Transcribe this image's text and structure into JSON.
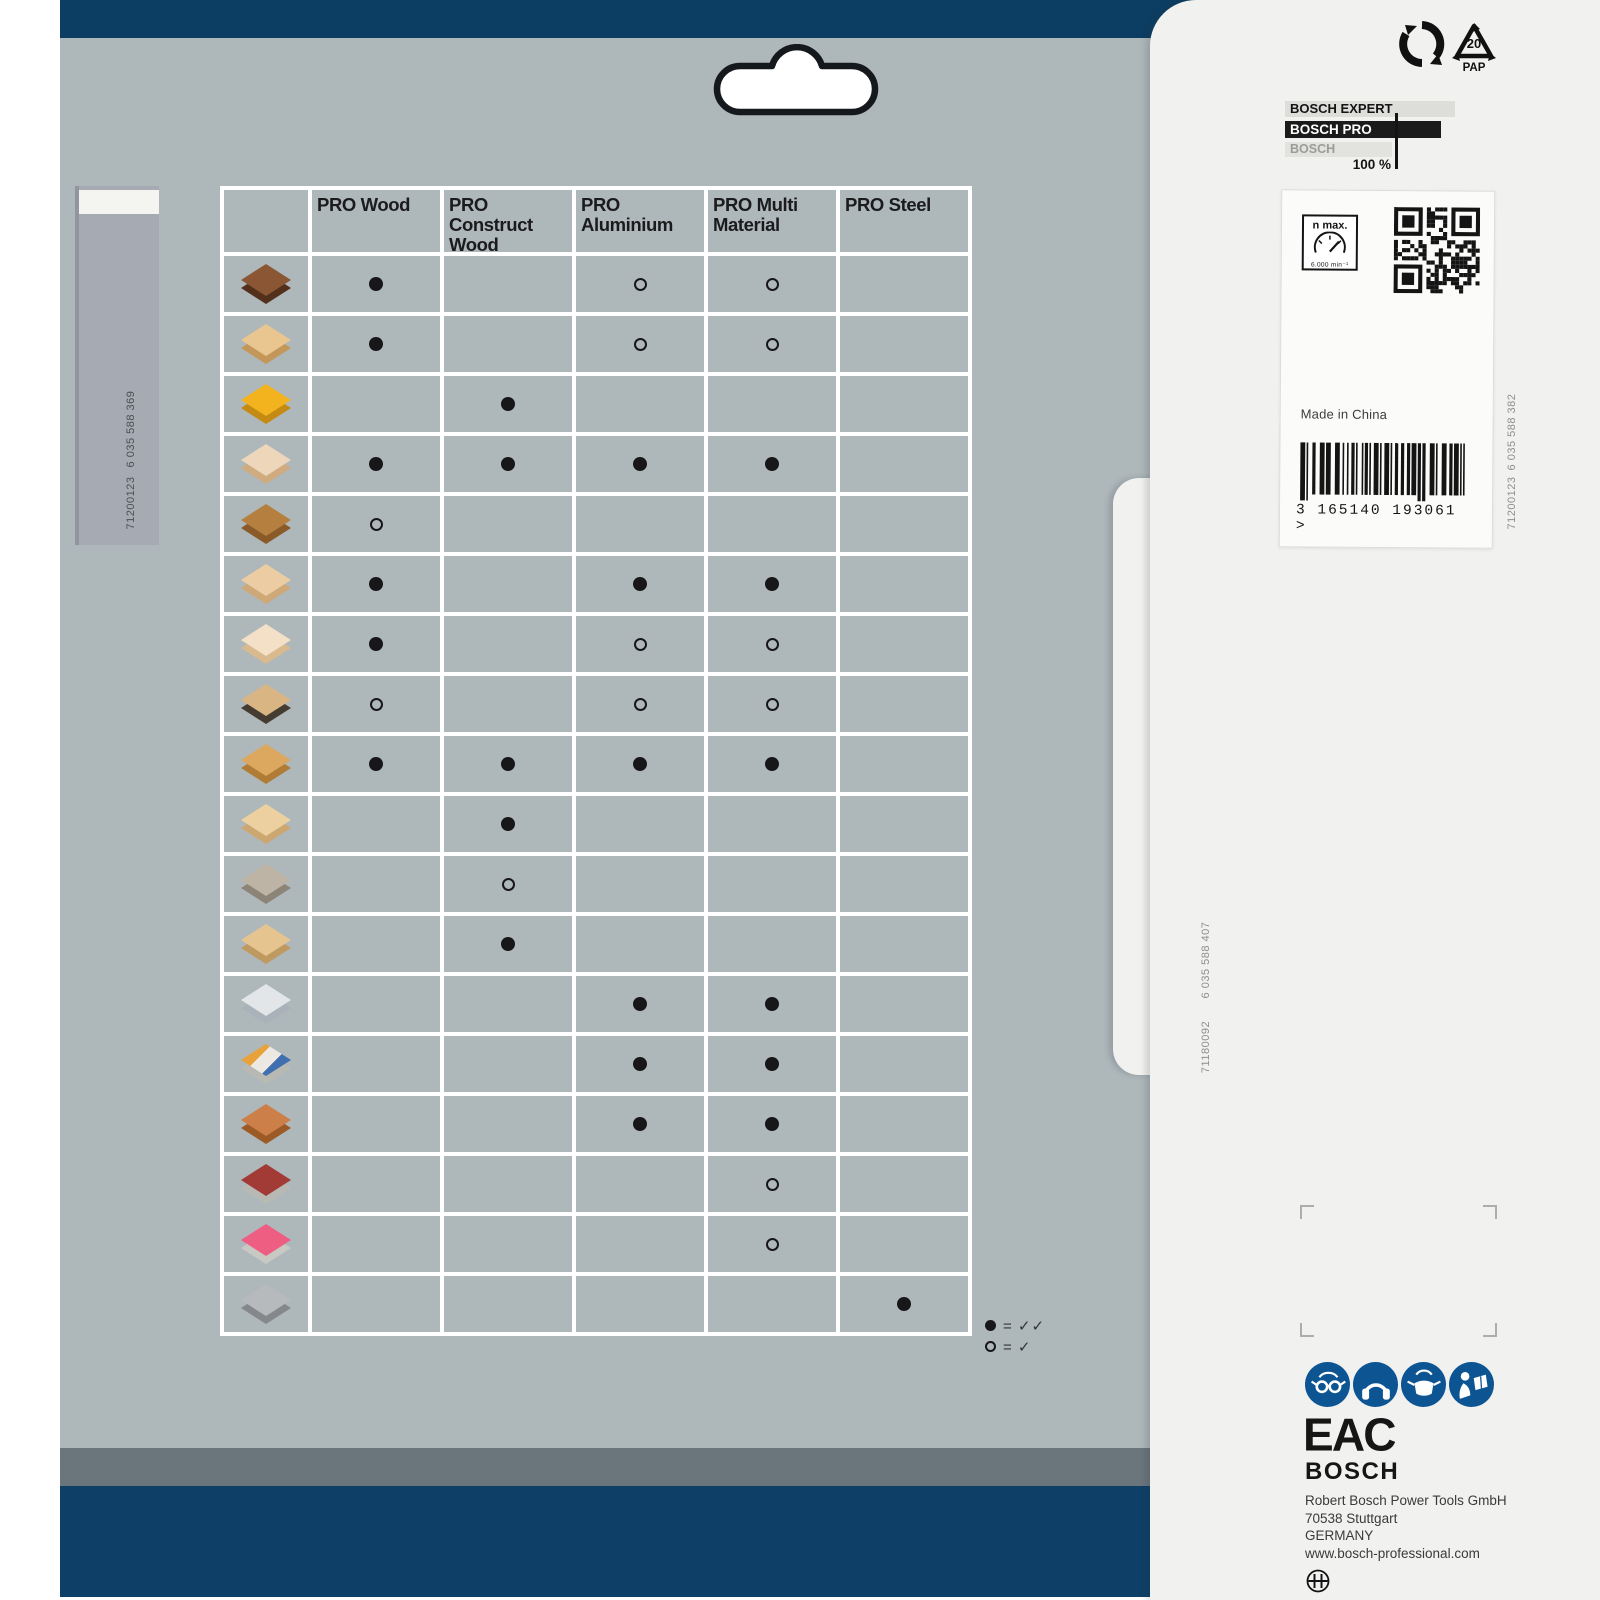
{
  "product_table": {
    "columns": [
      {
        "label": "PRO Wood"
      },
      {
        "label": "PRO Construct Wood"
      },
      {
        "label": "PRO Aluminium"
      },
      {
        "label": "PRO Multi Material"
      },
      {
        "label": "PRO Steel"
      }
    ],
    "rows": [
      {
        "material": "hardwood-planks",
        "icon": {
          "top": "#8a5633",
          "side": "#53301b"
        },
        "marks": [
          "full",
          "",
          "open",
          "open",
          ""
        ]
      },
      {
        "material": "softwood-planks",
        "icon": {
          "top": "#e9c58f",
          "side": "#c39759"
        },
        "marks": [
          "full",
          "",
          "open",
          "open",
          ""
        ]
      },
      {
        "material": "resin-coated-board",
        "icon": {
          "top": "#f2b31e",
          "side": "#c58a12"
        },
        "marks": [
          "",
          "full",
          "",
          "",
          ""
        ]
      },
      {
        "material": "chipboard",
        "icon": {
          "top": "#eed6bb",
          "side": "#d0ab80"
        },
        "marks": [
          "full",
          "full",
          "full",
          "full",
          ""
        ]
      },
      {
        "material": "parquet",
        "icon": {
          "top": "#b5803f",
          "side": "#8a5a28"
        },
        "marks": [
          "open",
          "",
          "",
          "",
          ""
        ]
      },
      {
        "material": "mdf-board",
        "icon": {
          "top": "#eccca2",
          "side": "#cfa878"
        },
        "marks": [
          "full",
          "",
          "full",
          "full",
          ""
        ]
      },
      {
        "material": "plywood-boards",
        "icon": {
          "top": "#f3e0c6",
          "side": "#d9b98e"
        },
        "marks": [
          "full",
          "",
          "open",
          "open",
          ""
        ]
      },
      {
        "material": "laminated-board",
        "icon": {
          "top": "#d8b583",
          "side": "#453c31"
        },
        "marks": [
          "open",
          "",
          "open",
          "open",
          ""
        ]
      },
      {
        "material": "osb-board",
        "icon": {
          "top": "#dca75f",
          "side": "#b07c35"
        },
        "marks": [
          "full",
          "full",
          "full",
          "full",
          ""
        ]
      },
      {
        "material": "construction-timber",
        "icon": {
          "top": "#edd09f",
          "side": "#cda771"
        },
        "marks": [
          "",
          "full",
          "",
          "",
          ""
        ]
      },
      {
        "material": "nailed-crate",
        "icon": {
          "top": "#beb4a5",
          "side": "#8d8478"
        },
        "marks": [
          "",
          "open",
          "",
          "",
          ""
        ]
      },
      {
        "material": "nailed-board",
        "icon": {
          "top": "#e5c48f",
          "side": "#bf9a60"
        },
        "marks": [
          "",
          "full",
          "",
          "",
          ""
        ]
      },
      {
        "material": "aluminium-profile",
        "icon": {
          "top": "#e2e6e9",
          "side": "#a9b2b8"
        },
        "marks": [
          "",
          "",
          "full",
          "full",
          ""
        ]
      },
      {
        "material": "plastic-pipes",
        "icon": {
          "top": "#e8a23c",
          "side": "#b9b9b4",
          "stripe": "#3f6fae"
        },
        "marks": [
          "",
          "",
          "full",
          "full",
          ""
        ]
      },
      {
        "material": "copper-pipe-fittings",
        "icon": {
          "top": "#cd7f49",
          "side": "#9c5a26"
        },
        "marks": [
          "",
          "",
          "full",
          "full",
          ""
        ]
      },
      {
        "material": "laminate-panel-dark-red",
        "icon": {
          "top": "#a23b36",
          "side": "#b9b9b4"
        },
        "marks": [
          "",
          "",
          "",
          "open",
          ""
        ]
      },
      {
        "material": "laminate-panel-pink",
        "icon": {
          "top": "#ee5e82",
          "side": "#c9c9c4"
        },
        "marks": [
          "",
          "",
          "",
          "open",
          ""
        ]
      },
      {
        "material": "steel-rods",
        "icon": {
          "top": "#b7babd",
          "side": "#85888b"
        },
        "marks": [
          "",
          "",
          "",
          "",
          "full"
        ]
      }
    ],
    "legend": [
      {
        "mark": "full",
        "text": "= ✓✓"
      },
      {
        "mark": "open",
        "text": "= ✓"
      }
    ]
  },
  "side_codes": {
    "left_top": "6 035 588 369",
    "left_bottom": "71200123",
    "panel_right_top": "6 035 588 382",
    "panel_right_bottom": "71200123",
    "flap_top": "6 035 588 407",
    "flap_bottom": "71180092"
  },
  "panel": {
    "pap": {
      "number": "20",
      "label": "PAP"
    },
    "tiers": {
      "expert": "BOSCH EXPERT",
      "pro": "BOSCH PRO",
      "basic": "BOSCH",
      "percent": "100 %"
    },
    "sticker": {
      "nmax_label": "n max.",
      "nmax_value": "6.000 min⁻¹",
      "made_in": "Made in China",
      "barcode_digits": "3 165140 193061 >"
    },
    "footer": {
      "eac": "EAC",
      "brand": "BOSCH",
      "address1": "Robert Bosch Power Tools GmbH",
      "address2": "70538 Stuttgart",
      "address3": "GERMANY",
      "address4": "www.bosch-professional.com"
    }
  },
  "colors": {
    "card_gray": "#aeb7ba",
    "brand_blue": "#0c3e63",
    "picto_blue": "#0d5493",
    "panel_white": "#f1f1ef"
  }
}
